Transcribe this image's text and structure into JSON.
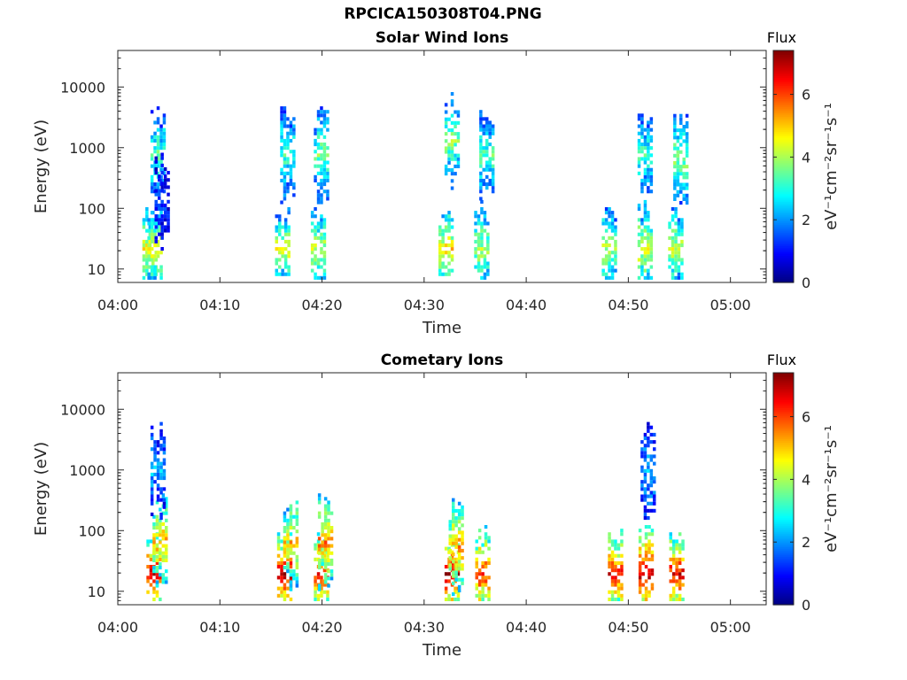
{
  "figure": {
    "title": "RPCICA150308T04.PNG"
  },
  "colormap": "jet",
  "chart_data": [
    {
      "type": "heatmap",
      "title": "Solar Wind Ions",
      "xlabel": "Time",
      "ylabel": "Energy (eV)",
      "x_ticks": [
        "04:00",
        "04:10",
        "04:20",
        "04:30",
        "04:40",
        "04:50",
        "05:00"
      ],
      "x_range_minutes": [
        0,
        63.5
      ],
      "y_scale": "log",
      "y_ticks": [
        "10",
        "100",
        "1000",
        "10000"
      ],
      "y_range": [
        6,
        40000
      ],
      "colorbar": {
        "label_top": "Flux",
        "unit": "eV⁻¹cm⁻²sr⁻¹s⁻¹",
        "ticks": [
          0,
          2,
          4,
          6
        ],
        "range": [
          0,
          7.4
        ]
      },
      "bursts_minutes": [
        {
          "x": 3.0,
          "y": 20,
          "v": 4.6
        },
        {
          "x": 3.5,
          "y": 20,
          "v": 4.6
        },
        {
          "x": 3.8,
          "y": 700,
          "v": 3.4
        },
        {
          "x": 4.2,
          "y": 120,
          "v": 1.2
        },
        {
          "x": 16.0,
          "y": 20,
          "v": 4.4
        },
        {
          "x": 16.5,
          "y": 700,
          "v": 3.2
        },
        {
          "x": 19.5,
          "y": 20,
          "v": 4.2
        },
        {
          "x": 19.8,
          "y": 700,
          "v": 3.6
        },
        {
          "x": 32.0,
          "y": 20,
          "v": 4.8
        },
        {
          "x": 32.6,
          "y": 1200,
          "v": 3.8
        },
        {
          "x": 35.5,
          "y": 20,
          "v": 4.0
        },
        {
          "x": 36.0,
          "y": 700,
          "v": 3.4
        },
        {
          "x": 48.0,
          "y": 20,
          "v": 4.0
        },
        {
          "x": 51.5,
          "y": 20,
          "v": 4.4
        },
        {
          "x": 51.5,
          "y": 700,
          "v": 3.2
        },
        {
          "x": 54.5,
          "y": 20,
          "v": 4.2
        },
        {
          "x": 55.0,
          "y": 600,
          "v": 3.8
        }
      ]
    },
    {
      "type": "heatmap",
      "title": "Cometary Ions",
      "xlabel": "Time",
      "ylabel": "Energy (eV)",
      "x_ticks": [
        "04:00",
        "04:10",
        "04:20",
        "04:30",
        "04:40",
        "04:50",
        "05:00"
      ],
      "x_range_minutes": [
        0,
        63.5
      ],
      "y_scale": "log",
      "y_ticks": [
        "10",
        "100",
        "1000",
        "10000"
      ],
      "y_range": [
        6,
        40000
      ],
      "colorbar": {
        "label_top": "Flux",
        "unit": "eV⁻¹cm⁻²sr⁻¹s⁻¹",
        "ticks": [
          0,
          2,
          4,
          6
        ],
        "range": [
          0,
          7.4
        ]
      },
      "bursts_minutes": [
        {
          "x": 3.4,
          "y": 18,
          "v": 6.8
        },
        {
          "x": 4.0,
          "y": 60,
          "v": 5.2
        },
        {
          "x": 3.8,
          "y": 900,
          "v": 2.2
        },
        {
          "x": 16.2,
          "y": 18,
          "v": 6.8
        },
        {
          "x": 16.8,
          "y": 60,
          "v": 5.2
        },
        {
          "x": 19.8,
          "y": 18,
          "v": 6.4
        },
        {
          "x": 20.2,
          "y": 60,
          "v": 5.6
        },
        {
          "x": 32.6,
          "y": 18,
          "v": 7.0
        },
        {
          "x": 33.0,
          "y": 50,
          "v": 5.4
        },
        {
          "x": 35.6,
          "y": 18,
          "v": 6.2
        },
        {
          "x": 48.6,
          "y": 18,
          "v": 6.6
        },
        {
          "x": 51.6,
          "y": 18,
          "v": 6.8
        },
        {
          "x": 54.6,
          "y": 18,
          "v": 6.6
        },
        {
          "x": 51.8,
          "y": 900,
          "v": 2.2
        }
      ]
    }
  ]
}
